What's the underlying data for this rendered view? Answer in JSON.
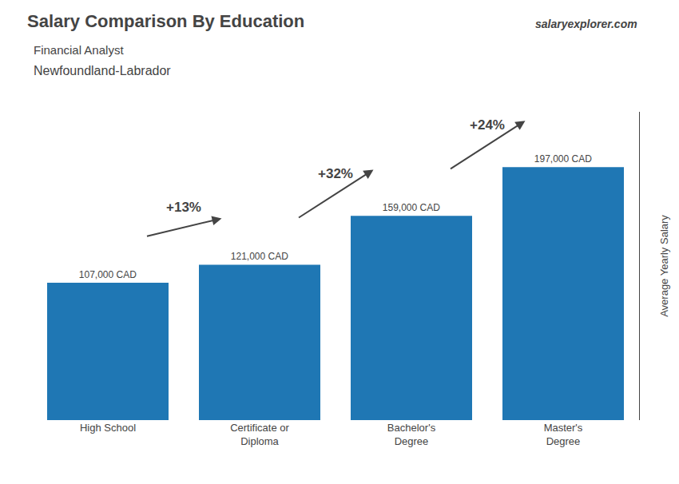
{
  "chart_data": {
    "type": "bar",
    "title": "Salary Comparison By Education",
    "subtitle": [
      "Financial Analyst",
      "Newfoundland-Labrador"
    ],
    "source": "salaryexplorer.com",
    "ylabel": "Average Yearly Salary",
    "categories": [
      "High School",
      "Certificate or\nDiploma",
      "Bachelor's\nDegree",
      "Master's\nDegree"
    ],
    "values": [
      107000,
      121000,
      159000,
      197000
    ],
    "value_labels": [
      "107,000 CAD",
      "121,000 CAD",
      "159,000 CAD",
      "197,000 CAD"
    ],
    "data_labels": true,
    "annotations": [
      "+13%",
      "+32%",
      "+24%"
    ],
    "ylim": [
      0,
      240000
    ],
    "yticks": [],
    "tick_labels": "x",
    "grid": false
  }
}
